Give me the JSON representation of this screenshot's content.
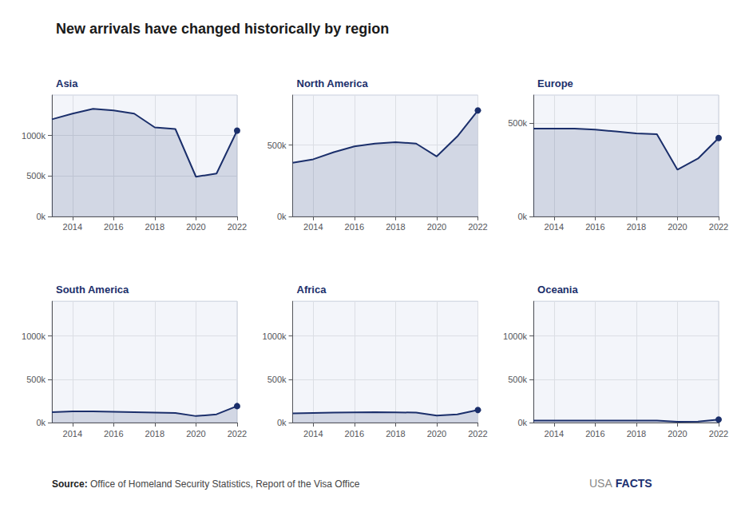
{
  "title": "New arrivals have changed historically by region",
  "annotations": [
    "Source:",
    "Office of Homeland Security Statistics, Report of the Visa Office",
    "USA",
    "FACTS"
  ],
  "chart_data": [
    {
      "type": "area",
      "title": "Asia",
      "color": "#1b2f6b",
      "grid": true,
      "x": [
        2013,
        2014,
        2015,
        2016,
        2017,
        2018,
        2019,
        2020,
        2021,
        2022
      ],
      "values": [
        1200000,
        1270000,
        1330000,
        1310000,
        1270000,
        1100000,
        1080000,
        490000,
        530000,
        1060000
      ],
      "xlim": [
        2013,
        2022
      ],
      "xticks": [
        2014,
        2016,
        2018,
        2020,
        2022
      ],
      "ylim": [
        0,
        1500000
      ],
      "yticks": [
        {
          "value": 0,
          "label": "0k"
        },
        {
          "value": 500000,
          "label": "500k"
        },
        {
          "value": 1000000,
          "label": "1000k"
        }
      ]
    },
    {
      "type": "area",
      "title": "North America",
      "color": "#1b2f6b",
      "grid": true,
      "x": [
        2013,
        2014,
        2015,
        2016,
        2017,
        2018,
        2019,
        2020,
        2021,
        2022
      ],
      "values": [
        375000,
        400000,
        450000,
        490000,
        510000,
        520000,
        510000,
        420000,
        560000,
        741845
      ],
      "xlim": [
        2013,
        2022
      ],
      "xticks": [
        2014,
        2016,
        2018,
        2020,
        2022
      ],
      "ylim": [
        0,
        850000
      ],
      "yticks": [
        {
          "value": 0,
          "label": "0k"
        },
        {
          "value": 500000,
          "label": "500k"
        }
      ]
    },
    {
      "type": "area",
      "title": "Europe",
      "color": "#1b2f6b",
      "grid": true,
      "x": [
        2013,
        2014,
        2015,
        2016,
        2017,
        2018,
        2019,
        2020,
        2021,
        2022
      ],
      "values": [
        470000,
        470000,
        470000,
        465000,
        455000,
        445000,
        440000,
        250000,
        310000,
        420000
      ],
      "xlim": [
        2013,
        2022
      ],
      "xticks": [
        2014,
        2016,
        2018,
        2020,
        2022
      ],
      "ylim": [
        0,
        650000
      ],
      "yticks": [
        {
          "value": 0,
          "label": "0k"
        },
        {
          "value": 500000,
          "label": "500k"
        }
      ]
    },
    {
      "type": "area",
      "title": "South America",
      "color": "#1b2f6b",
      "grid": true,
      "x": [
        2013,
        2014,
        2015,
        2016,
        2017,
        2018,
        2019,
        2020,
        2021,
        2022
      ],
      "values": [
        120000,
        130000,
        130000,
        125000,
        120000,
        115000,
        110000,
        75000,
        95000,
        190000
      ],
      "xlim": [
        2013,
        2022
      ],
      "xticks": [
        2014,
        2016,
        2018,
        2020,
        2022
      ],
      "ylim": [
        0,
        1400000
      ],
      "yticks": [
        {
          "value": 0,
          "label": "0k"
        },
        {
          "value": 500000,
          "label": "500k"
        },
        {
          "value": 1000000,
          "label": "1000k"
        }
      ]
    },
    {
      "type": "area",
      "title": "Africa",
      "color": "#1b2f6b",
      "grid": true,
      "x": [
        2013,
        2014,
        2015,
        2016,
        2017,
        2018,
        2019,
        2020,
        2021,
        2022
      ],
      "values": [
        105000,
        110000,
        115000,
        118000,
        120000,
        118000,
        115000,
        80000,
        95000,
        145000
      ],
      "xlim": [
        2013,
        2022
      ],
      "xticks": [
        2014,
        2016,
        2018,
        2020,
        2022
      ],
      "ylim": [
        0,
        1400000
      ],
      "yticks": [
        {
          "value": 0,
          "label": "0k"
        },
        {
          "value": 500000,
          "label": "500k"
        },
        {
          "value": 1000000,
          "label": "1000k"
        }
      ]
    },
    {
      "type": "area",
      "title": "Oceania",
      "color": "#1b2f6b",
      "grid": true,
      "x": [
        2013,
        2014,
        2015,
        2016,
        2017,
        2018,
        2019,
        2020,
        2021,
        2022
      ],
      "values": [
        22000,
        23000,
        24000,
        24000,
        24000,
        23000,
        22000,
        10000,
        12000,
        35000
      ],
      "xlim": [
        2013,
        2022
      ],
      "xticks": [
        2014,
        2016,
        2018,
        2020,
        2022
      ],
      "ylim": [
        0,
        1400000
      ],
      "yticks": [
        {
          "value": 0,
          "label": "0k"
        },
        {
          "value": 500000,
          "label": "500k"
        },
        {
          "value": 1000000,
          "label": "1000k"
        }
      ]
    }
  ]
}
